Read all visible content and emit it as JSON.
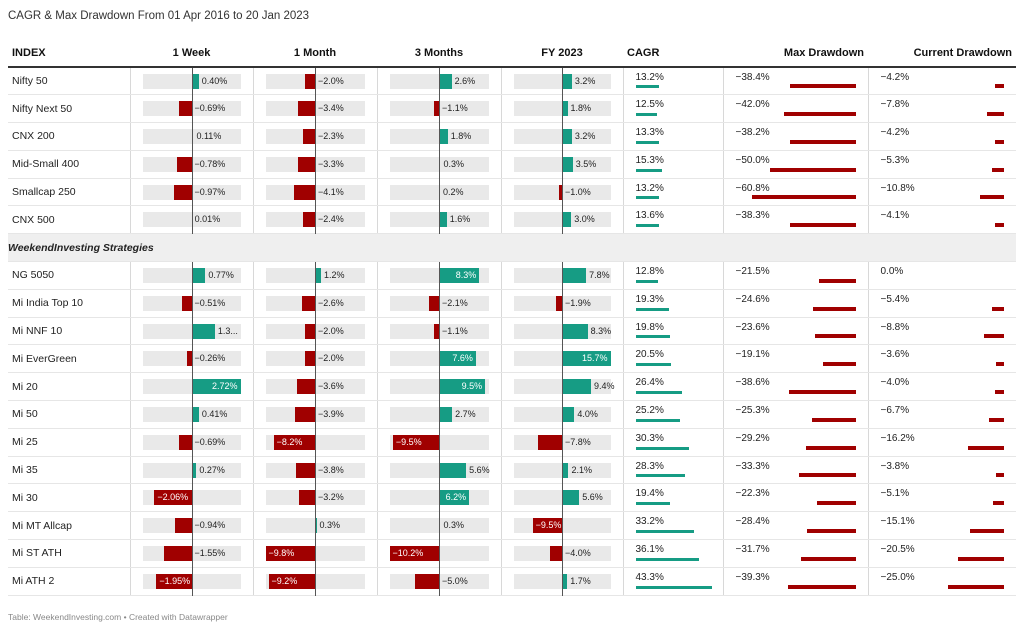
{
  "title": "CAGR & Max Drawdown From 01 Apr 2016 to 20 Jan 2023",
  "footer": "Table: WeekendInvesting.com • Created with Datawrapper",
  "headers": {
    "index": "INDEX",
    "week": "1 Week",
    "month": "1 Month",
    "months3": "3 Months",
    "fy": "FY 2023",
    "cagr": "CAGR",
    "maxdd": "Max Drawdown",
    "curdd": "Current Drawdown"
  },
  "colors": {
    "positive": "#169c84",
    "negative": "#a00000",
    "track": "#e9e9e9"
  },
  "separator_label": "WeekendInvesting Strategies",
  "chart_data": {
    "type": "table",
    "title": "CAGR & Max Drawdown From 01 Apr 2016 to 20 Jan 2023",
    "columns": [
      "INDEX",
      "1 Week",
      "1 Month",
      "3 Months",
      "FY 2023",
      "CAGR",
      "Max Drawdown",
      "Current Drawdown"
    ],
    "units": "%",
    "groups": [
      {
        "rows": [
          {
            "name": "Nifty 50",
            "week": 0.4,
            "week_label": "0.40%",
            "month": -2.0,
            "month_label": "−2.0%",
            "m3": 2.6,
            "m3_label": "2.6%",
            "fy": 3.2,
            "fy_label": "3.2%",
            "cagr": 13.2,
            "cagr_label": "13.2%",
            "maxdd": -38.4,
            "maxdd_label": "−38.4%",
            "curdd": -4.2,
            "curdd_label": "−4.2%"
          },
          {
            "name": "Nifty Next 50",
            "week": -0.69,
            "week_label": "−0.69%",
            "month": -3.4,
            "month_label": "−3.4%",
            "m3": -1.1,
            "m3_label": "−1.1%",
            "fy": 1.8,
            "fy_label": "1.8%",
            "cagr": 12.5,
            "cagr_label": "12.5%",
            "maxdd": -42.0,
            "maxdd_label": "−42.0%",
            "curdd": -7.8,
            "curdd_label": "−7.8%"
          },
          {
            "name": "CNX 200",
            "week": 0.11,
            "week_label": "0.11%",
            "month": -2.3,
            "month_label": "−2.3%",
            "m3": 1.8,
            "m3_label": "1.8%",
            "fy": 3.2,
            "fy_label": "3.2%",
            "cagr": 13.3,
            "cagr_label": "13.3%",
            "maxdd": -38.2,
            "maxdd_label": "−38.2%",
            "curdd": -4.2,
            "curdd_label": "−4.2%"
          },
          {
            "name": "Mid-Small 400",
            "week": -0.78,
            "week_label": "−0.78%",
            "month": -3.3,
            "month_label": "−3.3%",
            "m3": 0.3,
            "m3_label": "0.3%",
            "fy": 3.5,
            "fy_label": "3.5%",
            "cagr": 15.3,
            "cagr_label": "15.3%",
            "maxdd": -50.0,
            "maxdd_label": "−50.0%",
            "curdd": -5.3,
            "curdd_label": "−5.3%"
          },
          {
            "name": "Smallcap 250",
            "week": -0.97,
            "week_label": "−0.97%",
            "month": -4.1,
            "month_label": "−4.1%",
            "m3": 0.2,
            "m3_label": "0.2%",
            "fy": -1.0,
            "fy_label": "−1.0%",
            "cagr": 13.2,
            "cagr_label": "13.2%",
            "maxdd": -60.8,
            "maxdd_label": "−60.8%",
            "curdd": -10.8,
            "curdd_label": "−10.8%"
          },
          {
            "name": "CNX 500",
            "week": 0.01,
            "week_label": "0.01%",
            "month": -2.4,
            "month_label": "−2.4%",
            "m3": 1.6,
            "m3_label": "1.6%",
            "fy": 3.0,
            "fy_label": "3.0%",
            "cagr": 13.6,
            "cagr_label": "13.6%",
            "maxdd": -38.3,
            "maxdd_label": "−38.3%",
            "curdd": -4.1,
            "curdd_label": "−4.1%"
          }
        ]
      },
      {
        "label": "WeekendInvesting Strategies",
        "rows": [
          {
            "name": "NG 5050",
            "week": 0.77,
            "week_label": "0.77%",
            "month": 1.2,
            "month_label": "1.2%",
            "m3": 8.3,
            "m3_label": "8.3%",
            "fy": 7.8,
            "fy_label": "7.8%",
            "cagr": 12.8,
            "cagr_label": "12.8%",
            "maxdd": -21.5,
            "maxdd_label": "−21.5%",
            "curdd": 0.0,
            "curdd_label": "0.0%"
          },
          {
            "name": "Mi India Top 10",
            "week": -0.51,
            "week_label": "−0.51%",
            "month": -2.6,
            "month_label": "−2.6%",
            "m3": -2.1,
            "m3_label": "−2.1%",
            "fy": -1.9,
            "fy_label": "−1.9%",
            "cagr": 19.3,
            "cagr_label": "19.3%",
            "maxdd": -24.6,
            "maxdd_label": "−24.6%",
            "curdd": -5.4,
            "curdd_label": "−5.4%"
          },
          {
            "name": "Mi NNF 10",
            "week": 1.3,
            "week_label": "1.3...",
            "month": -2.0,
            "month_label": "−2.0%",
            "m3": -1.1,
            "m3_label": "−1.1%",
            "fy": 8.3,
            "fy_label": "8.3%",
            "cagr": 19.8,
            "cagr_label": "19.8%",
            "maxdd": -23.6,
            "maxdd_label": "−23.6%",
            "curdd": -8.8,
            "curdd_label": "−8.8%"
          },
          {
            "name": "Mi EverGreen",
            "week": -0.26,
            "week_label": "−0.26%",
            "month": -2.0,
            "month_label": "−2.0%",
            "m3": 7.6,
            "m3_label": "7.6%",
            "fy": 15.7,
            "fy_label": "15.7%",
            "cagr": 20.5,
            "cagr_label": "20.5%",
            "maxdd": -19.1,
            "maxdd_label": "−19.1%",
            "curdd": -3.6,
            "curdd_label": "−3.6%"
          },
          {
            "name": "Mi 20",
            "week": 2.72,
            "week_label": "2.72%",
            "month": -3.6,
            "month_label": "−3.6%",
            "m3": 9.5,
            "m3_label": "9.5%",
            "fy": 9.4,
            "fy_label": "9.4%",
            "cagr": 26.4,
            "cagr_label": "26.4%",
            "maxdd": -38.6,
            "maxdd_label": "−38.6%",
            "curdd": -4.0,
            "curdd_label": "−4.0%"
          },
          {
            "name": "Mi 50",
            "week": 0.41,
            "week_label": "0.41%",
            "month": -3.9,
            "month_label": "−3.9%",
            "m3": 2.7,
            "m3_label": "2.7%",
            "fy": 4.0,
            "fy_label": "4.0%",
            "cagr": 25.2,
            "cagr_label": "25.2%",
            "maxdd": -25.3,
            "maxdd_label": "−25.3%",
            "curdd": -6.7,
            "curdd_label": "−6.7%"
          },
          {
            "name": "Mi 25",
            "week": -0.69,
            "week_label": "−0.69%",
            "month": -8.2,
            "month_label": "−8.2%",
            "m3": -9.5,
            "m3_label": "−9.5%",
            "fy": -7.8,
            "fy_label": "−7.8%",
            "cagr": 30.3,
            "cagr_label": "30.3%",
            "maxdd": -29.2,
            "maxdd_label": "−29.2%",
            "curdd": -16.2,
            "curdd_label": "−16.2%"
          },
          {
            "name": "Mi 35",
            "week": 0.27,
            "week_label": "0.27%",
            "month": -3.8,
            "month_label": "−3.8%",
            "m3": 5.6,
            "m3_label": "5.6%",
            "fy": 2.1,
            "fy_label": "2.1%",
            "cagr": 28.3,
            "cagr_label": "28.3%",
            "maxdd": -33.3,
            "maxdd_label": "−33.3%",
            "curdd": -3.8,
            "curdd_label": "−3.8%"
          },
          {
            "name": "Mi 30",
            "week": -2.06,
            "week_label": "−2.06%",
            "month": -3.2,
            "month_label": "−3.2%",
            "m3": 6.2,
            "m3_label": "6.2%",
            "fy": 5.6,
            "fy_label": "5.6%",
            "cagr": 19.4,
            "cagr_label": "19.4%",
            "maxdd": -22.3,
            "maxdd_label": "−22.3%",
            "curdd": -5.1,
            "curdd_label": "−5.1%"
          },
          {
            "name": "Mi MT Allcap",
            "week": -0.94,
            "week_label": "−0.94%",
            "month": 0.3,
            "month_label": "0.3%",
            "m3": 0.3,
            "m3_label": "0.3%",
            "fy": -9.5,
            "fy_label": "−9.5%",
            "cagr": 33.2,
            "cagr_label": "33.2%",
            "maxdd": -28.4,
            "maxdd_label": "−28.4%",
            "curdd": -15.1,
            "curdd_label": "−15.1%"
          },
          {
            "name": "Mi ST ATH",
            "week": -1.55,
            "week_label": "−1.55%",
            "month": -9.8,
            "month_label": "−9.8%",
            "m3": -10.2,
            "m3_label": "−10.2%",
            "fy": -4.0,
            "fy_label": "−4.0%",
            "cagr": 36.1,
            "cagr_label": "36.1%",
            "maxdd": -31.7,
            "maxdd_label": "−31.7%",
            "curdd": -20.5,
            "curdd_label": "−20.5%"
          },
          {
            "name": "Mi ATH 2",
            "week": -1.95,
            "week_label": "−1.95%",
            "month": -9.2,
            "month_label": "−9.2%",
            "m3": -5.0,
            "m3_label": "−5.0%",
            "fy": 1.7,
            "fy_label": "1.7%",
            "cagr": 43.3,
            "cagr_label": "43.3%",
            "maxdd": -39.3,
            "maxdd_label": "−39.3%",
            "curdd": -25.0,
            "curdd_label": "−25.0%"
          }
        ]
      }
    ],
    "scales": {
      "week": [
        -2.72,
        2.72
      ],
      "month": [
        -9.8,
        9.8
      ],
      "m3": [
        -10.2,
        10.2
      ],
      "fy": [
        -15.7,
        15.7
      ],
      "cagr": [
        0,
        43.3
      ],
      "maxdd": [
        0,
        60.8
      ],
      "curdd": [
        0,
        25.0
      ]
    }
  }
}
